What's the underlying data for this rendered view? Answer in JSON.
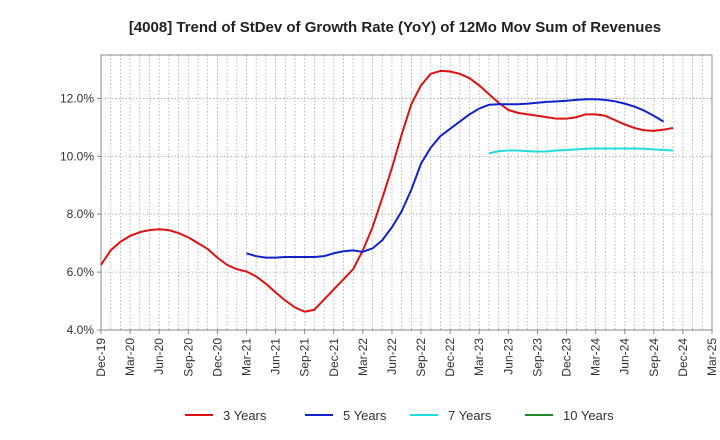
{
  "chart_data": {
    "type": "line",
    "title": "[4008]  Trend of StDev of Growth Rate (YoY) of 12Mo Mov Sum of Revenues",
    "xlabel": "",
    "ylabel": "",
    "ylim": [
      4.0,
      13.5
    ],
    "yticks": [
      4.0,
      6.0,
      8.0,
      10.0,
      12.0
    ],
    "ytick_labels": [
      "4.0%",
      "6.0%",
      "8.0%",
      "10.0%",
      "12.0%"
    ],
    "grid": true,
    "x_start": "Dec-19",
    "x_end": "Mar-25",
    "xtick_labels": [
      "Dec-19",
      "Mar-20",
      "Jun-20",
      "Sep-20",
      "Dec-20",
      "Mar-21",
      "Jun-21",
      "Sep-21",
      "Dec-21",
      "Mar-22",
      "Jun-22",
      "Sep-22",
      "Dec-22",
      "Mar-23",
      "Jun-23",
      "Sep-23",
      "Dec-23",
      "Mar-24",
      "Jun-24",
      "Sep-24",
      "Dec-24",
      "Mar-25"
    ],
    "legend_position": "bottom",
    "series": [
      {
        "name": "3 Years",
        "color": "#dd1111",
        "start_index": 0,
        "values": [
          6.25,
          6.75,
          7.05,
          7.25,
          7.38,
          7.45,
          7.48,
          7.45,
          7.35,
          7.2,
          7.0,
          6.8,
          6.5,
          6.25,
          6.1,
          6.02,
          5.85,
          5.6,
          5.3,
          5.02,
          4.78,
          4.63,
          4.7,
          5.05,
          5.4,
          5.75,
          6.1,
          6.75,
          7.55,
          8.55,
          9.6,
          10.75,
          11.8,
          12.45,
          12.85,
          12.95,
          12.93,
          12.85,
          12.7,
          12.45,
          12.15,
          11.85,
          11.6,
          11.5,
          11.45,
          11.4,
          11.35,
          11.3,
          11.3,
          11.35,
          11.45,
          11.45,
          11.4,
          11.25,
          11.1,
          10.98,
          10.9,
          10.88,
          10.92,
          10.98
        ]
      },
      {
        "name": "5 Years",
        "color": "#1122cc",
        "start_index": 15,
        "values": [
          6.65,
          6.55,
          6.5,
          6.5,
          6.52,
          6.52,
          6.52,
          6.52,
          6.55,
          6.65,
          6.72,
          6.75,
          6.7,
          6.82,
          7.1,
          7.55,
          8.1,
          8.85,
          9.75,
          10.3,
          10.7,
          10.95,
          11.2,
          11.45,
          11.65,
          11.78,
          11.8,
          11.8,
          11.8,
          11.82,
          11.85,
          11.88,
          11.9,
          11.92,
          11.95,
          11.97,
          11.97,
          11.95,
          11.9,
          11.82,
          11.72,
          11.58,
          11.4,
          11.2
        ]
      },
      {
        "name": "7 Years",
        "color": "#22dddd",
        "start_index": 40,
        "values": [
          10.1,
          10.18,
          10.2,
          10.2,
          10.18,
          10.16,
          10.17,
          10.2,
          10.22,
          10.24,
          10.26,
          10.27,
          10.27,
          10.27,
          10.27,
          10.27,
          10.26,
          10.24,
          10.22,
          10.2
        ]
      },
      {
        "name": "10 Years",
        "color": "#228822",
        "start_index": 0,
        "values": []
      }
    ]
  }
}
